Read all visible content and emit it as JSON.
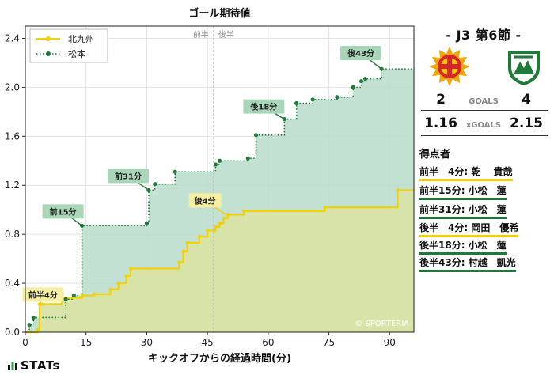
{
  "chart_data": {
    "type": "line",
    "title": "ゴール期待値",
    "xlabel": "キックオフからの経過時間(分)",
    "ylabel": "",
    "xlim": [
      0,
      96
    ],
    "ylim": [
      0,
      2.5
    ],
    "xticks": [
      0,
      15,
      30,
      45,
      60,
      75,
      90
    ],
    "yticks": [
      0.0,
      0.4,
      0.8,
      1.2,
      1.6,
      2.0,
      2.4
    ],
    "halftime_x": 46.5,
    "half_labels": {
      "first": "前半",
      "second": "後半"
    },
    "watermark": "© SPORTERIA",
    "legend_position": "upper-left",
    "series": [
      {
        "name": "北九州",
        "color": "#f2d100",
        "fill": "#d9e3a6",
        "line_style": "solid",
        "points": [
          [
            0,
            0
          ],
          [
            3,
            0.02
          ],
          [
            3.5,
            0.23
          ],
          [
            4,
            0.23
          ],
          [
            9,
            0.28
          ],
          [
            14,
            0.3
          ],
          [
            17,
            0.31
          ],
          [
            21,
            0.35
          ],
          [
            23,
            0.4
          ],
          [
            25,
            0.46
          ],
          [
            26,
            0.52
          ],
          [
            38,
            0.57
          ],
          [
            39,
            0.66
          ],
          [
            40,
            0.73
          ],
          [
            43,
            0.78
          ],
          [
            45,
            0.83
          ],
          [
            47,
            0.86
          ],
          [
            48,
            0.89
          ],
          [
            49,
            0.93
          ],
          [
            50,
            0.96
          ],
          [
            54,
            0.99
          ],
          [
            74,
            1.02
          ],
          [
            92,
            1.16
          ],
          [
            96,
            1.16
          ]
        ],
        "goals": [
          {
            "minute": 4,
            "label": "前半4分",
            "x": 3.6,
            "y": 0.23
          },
          {
            "minute": 49,
            "label": "後4分",
            "x": 49.5,
            "y": 0.96
          }
        ]
      },
      {
        "name": "松本",
        "color": "#1f7a3a",
        "fill": "#b9dccb",
        "line_style": "dotted",
        "points": [
          [
            0,
            0
          ],
          [
            1,
            0.06
          ],
          [
            2,
            0.12
          ],
          [
            10,
            0.27
          ],
          [
            12,
            0.3
          ],
          [
            14,
            0.87
          ],
          [
            30,
            0.89
          ],
          [
            30.5,
            1.16
          ],
          [
            32,
            1.21
          ],
          [
            37,
            1.31
          ],
          [
            47,
            1.37
          ],
          [
            48,
            1.4
          ],
          [
            55,
            1.42
          ],
          [
            57,
            1.61
          ],
          [
            64,
            1.74
          ],
          [
            67,
            1.87
          ],
          [
            71,
            1.9
          ],
          [
            77,
            1.92
          ],
          [
            81,
            2.0
          ],
          [
            83,
            2.05
          ],
          [
            84,
            2.07
          ],
          [
            88,
            2.15
          ],
          [
            96,
            2.15
          ]
        ],
        "goals": [
          {
            "minute": 15,
            "label": "前15分",
            "x": 14,
            "y": 0.87
          },
          {
            "minute": 31,
            "label": "前31分",
            "x": 30.5,
            "y": 1.16
          },
          {
            "minute": 63,
            "label": "後18分",
            "x": 64,
            "y": 1.74
          },
          {
            "minute": 88,
            "label": "後43分",
            "x": 88,
            "y": 2.15
          }
        ]
      }
    ]
  },
  "match": {
    "title": "- J3 第6節 -",
    "home_team": "北九州",
    "away_team": "松本",
    "home_goals": "2",
    "away_goals": "4",
    "goals_label": "GOALS",
    "home_xg": "1.16",
    "away_xg": "2.15",
    "xg_label": "xGOALS",
    "home_color": "#f2d100",
    "away_color": "#1f7a3a"
  },
  "scorers_title": "得点者",
  "scorers": [
    {
      "text": "前半　4分: 乾　 貴哉",
      "team": "home"
    },
    {
      "text": "前半15分: 小松　蓮",
      "team": "away"
    },
    {
      "text": "前半31分: 小松　蓮",
      "team": "away"
    },
    {
      "text": "後半　4分: 岡田　優希",
      "team": "home"
    },
    {
      "text": "後半18分: 小松　蓮",
      "team": "away"
    },
    {
      "text": "後半43分: 村越　凱光",
      "team": "away"
    }
  ],
  "branding": "STATs"
}
